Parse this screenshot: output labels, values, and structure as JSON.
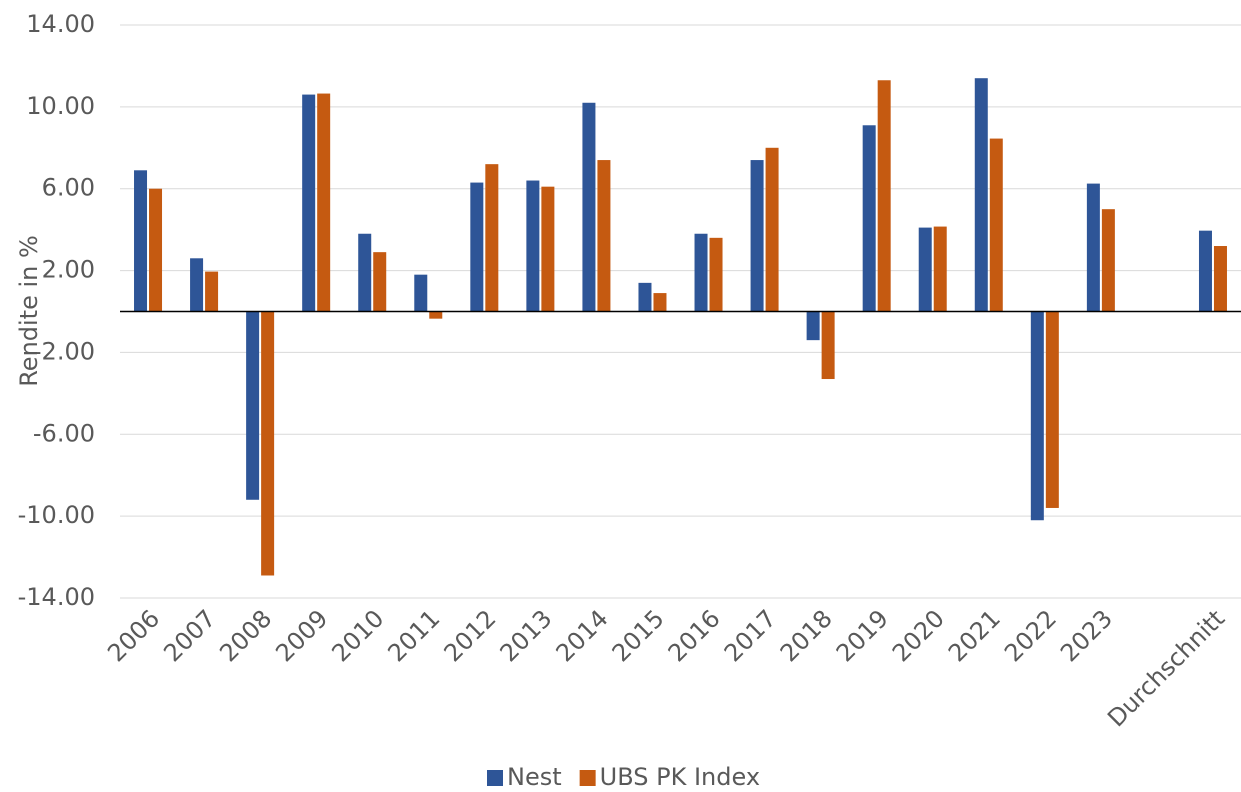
{
  "chart_data": {
    "type": "bar",
    "y_label": "Rendite in %",
    "categories": [
      "2006",
      "2007",
      "2008",
      "2009",
      "2010",
      "2011",
      "2012",
      "2013",
      "2014",
      "2015",
      "2016",
      "2017",
      "2018",
      "2019",
      "2020",
      "2021",
      "2022",
      "2023",
      null,
      "Durchschnitt"
    ],
    "series": [
      {
        "name": "Nest",
        "color": "#2e5597",
        "values": [
          6.9,
          2.6,
          -9.2,
          10.6,
          3.8,
          1.8,
          6.3,
          6.4,
          10.2,
          1.4,
          3.8,
          7.4,
          -1.4,
          9.1,
          4.1,
          11.4,
          -10.2,
          6.25,
          null,
          3.95
        ]
      },
      {
        "name": "UBS PK Index",
        "color": "#c55a11",
        "values": [
          6.0,
          1.95,
          -12.9,
          10.65,
          2.9,
          -0.35,
          7.2,
          6.1,
          7.4,
          0.9,
          3.6,
          8.0,
          -3.3,
          11.3,
          4.15,
          8.45,
          -9.6,
          5.0,
          null,
          3.2
        ]
      }
    ],
    "ylim": [
      -14,
      14
    ],
    "yticks": [
      {
        "value": 14,
        "label": "14.00"
      },
      {
        "value": 10,
        "label": "10.00"
      },
      {
        "value": 6,
        "label": "6.00"
      },
      {
        "value": 2,
        "label": "2.00"
      },
      {
        "value": -2,
        "label": "-2.00"
      },
      {
        "value": -6,
        "label": "-6.00"
      },
      {
        "value": -10,
        "label": "-10.00"
      },
      {
        "value": -14,
        "label": "-14.00"
      }
    ],
    "grid": true,
    "legend": "bottom"
  }
}
